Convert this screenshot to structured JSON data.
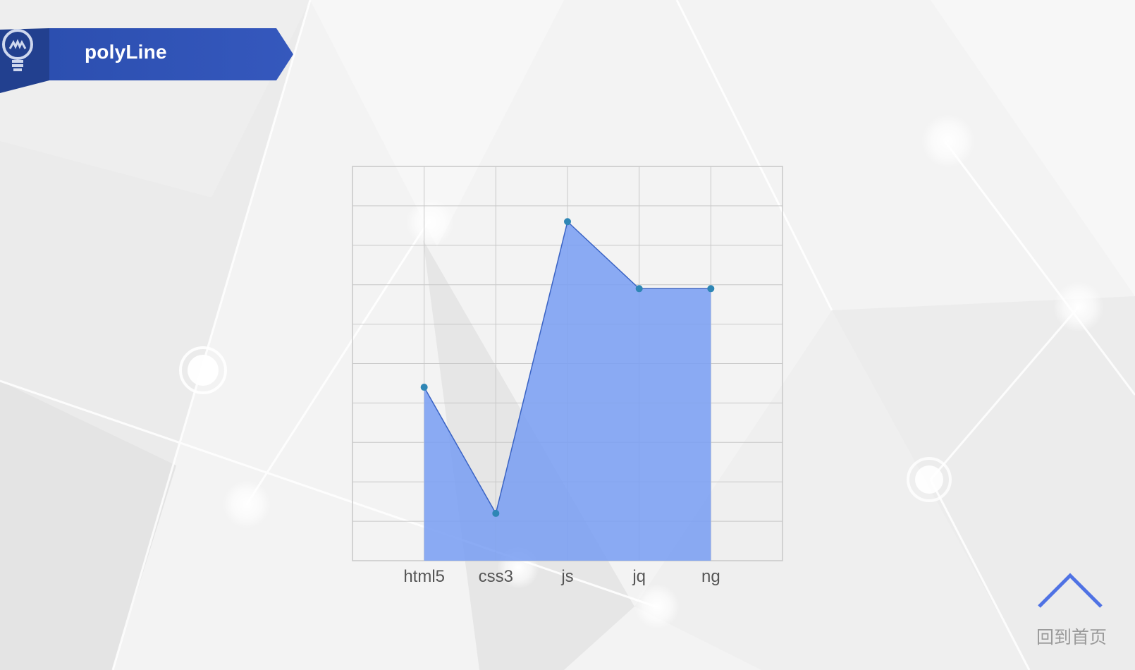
{
  "title": "polyLine",
  "back_home": {
    "label": "回到首页",
    "icon": "chevron-up-icon"
  },
  "colors": {
    "banner": "#2f54b8",
    "banner_dark": "#22408f",
    "area_fill": "#7b9ff2",
    "line": "#3a63c4",
    "point": "#2e86b5",
    "grid": "#c8c8c8",
    "chevron": "#4f72e4"
  },
  "icons": {
    "title": "lightbulb-icon"
  },
  "chart_data": {
    "type": "area",
    "categories": [
      "html5",
      "css3",
      "js",
      "jq",
      "ng"
    ],
    "values": [
      4.4,
      1.2,
      8.6,
      6.9,
      6.9
    ],
    "ylim": [
      0,
      10
    ],
    "grid": true,
    "title": "",
    "xlabel": "",
    "ylabel": ""
  }
}
